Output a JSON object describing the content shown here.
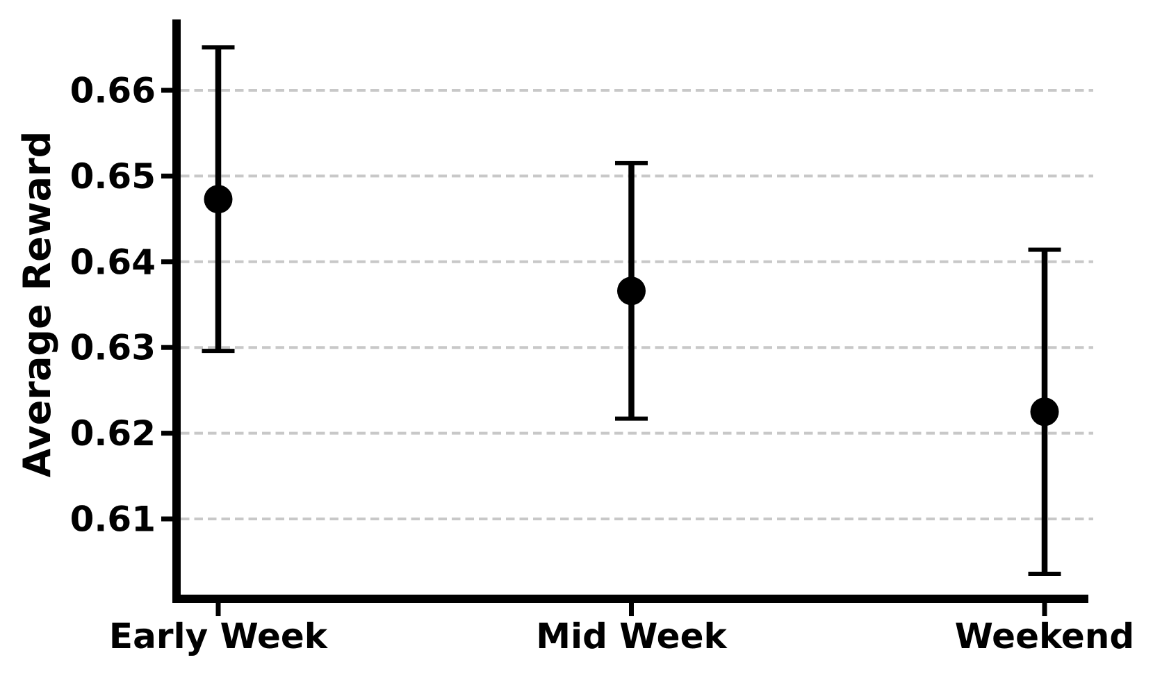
{
  "chart_data": {
    "type": "scatter",
    "subtype": "point-estimates-with-error-bars",
    "title": "",
    "xlabel": "",
    "ylabel": "Average Reward",
    "categories": [
      "Early Week",
      "Mid Week",
      "Weekend"
    ],
    "series": [
      {
        "name": "Average Reward",
        "means": [
          0.6473,
          0.6366,
          0.6225
        ],
        "ci_low": [
          0.6296,
          0.6217,
          0.6036
        ],
        "ci_high": [
          0.665,
          0.6515,
          0.6414
        ]
      }
    ],
    "yticks": [
      0.66,
      0.65,
      0.64,
      0.63,
      0.62,
      0.61
    ],
    "ytick_labels": [
      "0.66",
      "0.65",
      "0.64",
      "0.63",
      "0.62",
      "0.61"
    ],
    "ylim": [
      0.601,
      0.668
    ],
    "grid": {
      "axis": "y",
      "style": "dashed",
      "on": true
    },
    "legend": {
      "visible": false
    },
    "marker": {
      "shape": "circle"
    },
    "colors": {
      "point": "#000000",
      "error_bar": "#000000",
      "axis": "#000000",
      "text": "#000000",
      "grid": "#c8c8c8",
      "background": "#ffffff"
    }
  }
}
